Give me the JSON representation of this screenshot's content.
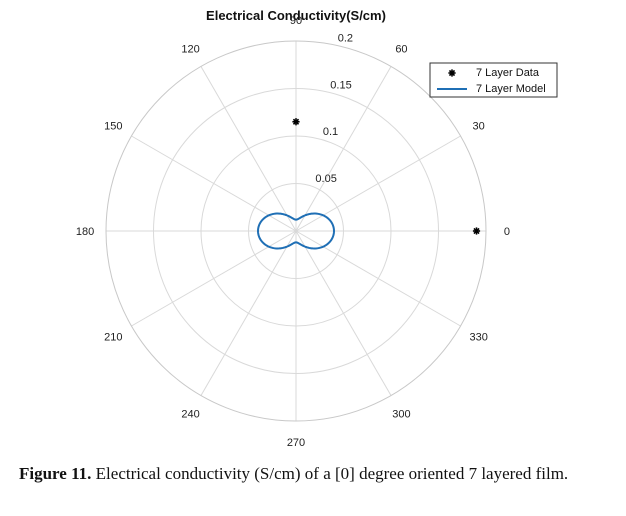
{
  "chart_data": {
    "type": "polar",
    "title": "Electrical Conductivity(S/cm)",
    "theta_unit": "degrees",
    "r_lim": [
      0,
      0.2
    ],
    "r_ticks": [
      0.05,
      0.1,
      0.15,
      0.2
    ],
    "r_tick_labels": [
      "0.05",
      "0.1",
      "0.15",
      "0.2"
    ],
    "theta_ticks": [
      0,
      30,
      60,
      90,
      120,
      150,
      180,
      210,
      240,
      270,
      300,
      330
    ],
    "theta_tick_labels": [
      "0",
      "30",
      "60",
      "90",
      "120",
      "150",
      "180",
      "210",
      "240",
      "270",
      "300",
      "330"
    ],
    "grid": true,
    "legend_position": "top-right",
    "series": [
      {
        "name": "7 Layer Data",
        "kind": "points",
        "marker": "asterisk",
        "color": "#000000",
        "theta": [
          0,
          90
        ],
        "r": [
          0.19,
          0.115
        ]
      },
      {
        "name": "7 Layer Model",
        "kind": "line",
        "color": "#1f6fb5",
        "model": "cosine-squared lobes (figure-eight)",
        "r_max": 0.04,
        "r_min": 0.012,
        "theta": [
          0,
          15,
          30,
          45,
          60,
          75,
          90,
          105,
          120,
          135,
          150,
          165,
          180,
          195,
          210,
          225,
          240,
          255,
          270,
          285,
          300,
          315,
          330,
          345,
          360
        ],
        "r": [
          0.04,
          0.0382,
          0.0333,
          0.026,
          0.0187,
          0.0138,
          0.012,
          0.0138,
          0.0187,
          0.026,
          0.0333,
          0.0382,
          0.04,
          0.0382,
          0.0333,
          0.026,
          0.0187,
          0.0138,
          0.012,
          0.0138,
          0.0187,
          0.026,
          0.0333,
          0.0382,
          0.04
        ]
      }
    ]
  },
  "caption": {
    "label": "Figure 11.",
    "text": " Electrical conductivity (S/cm) of a [0] degree oriented 7 layered film."
  }
}
